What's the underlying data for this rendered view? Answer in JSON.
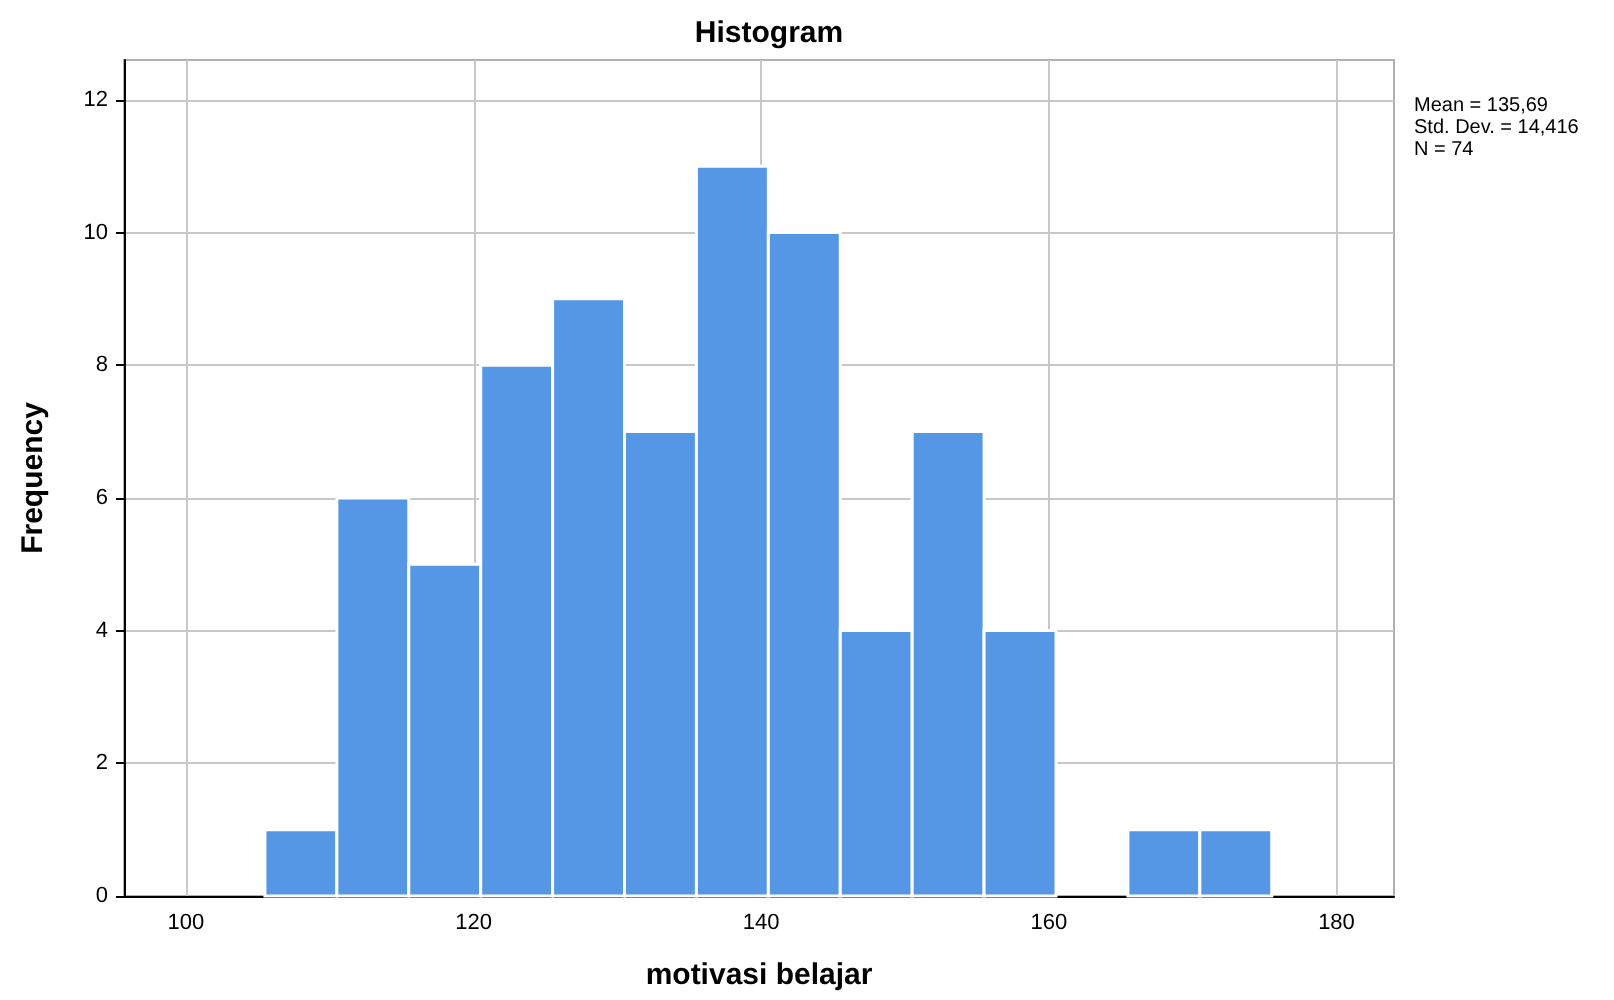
{
  "chart_data": {
    "type": "histogram",
    "title": "Histogram",
    "xlabel": "motivasi belajar",
    "ylabel": "Frequency",
    "bins": [
      105.5,
      110.5,
      115.5,
      120.5,
      125.5,
      130.5,
      135.5,
      140.5,
      145.5,
      150.5,
      155.5,
      160.5,
      165.5,
      170.5,
      175.5
    ],
    "values": [
      1,
      6,
      5,
      8,
      9,
      7,
      11,
      10,
      4,
      7,
      4,
      0,
      1,
      1
    ],
    "color": "#5597e5",
    "xlim": [
      95.7,
      184
    ],
    "xticks": [
      100,
      120,
      140,
      160,
      180
    ],
    "ylim": [
      0,
      12.6
    ],
    "yticks": [
      0,
      2,
      4,
      6,
      8,
      10,
      12
    ],
    "grid": true,
    "annotations": [
      "Mean = 135,69",
      "Std. Dev. = 14,416",
      "N = 74"
    ]
  }
}
